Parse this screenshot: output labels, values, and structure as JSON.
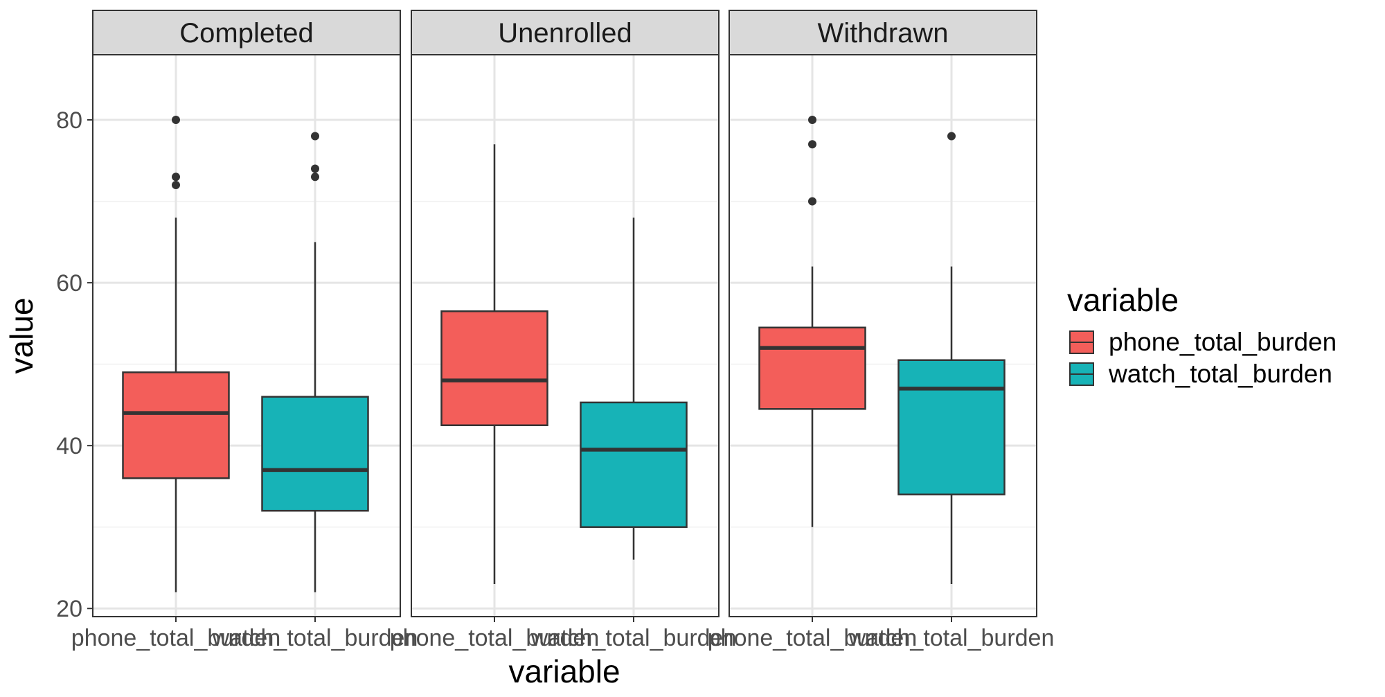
{
  "chart_data": {
    "type": "boxplot",
    "title": "",
    "xlabel": "variable",
    "ylabel": "value",
    "ylim": [
      19,
      88
    ],
    "yticks": [
      20,
      40,
      60,
      80
    ],
    "grid": true,
    "categories": [
      "phone_total_burden",
      "watch_total_burden"
    ],
    "legend": {
      "title": "variable",
      "position": "right",
      "entries": [
        {
          "label": "phone_total_burden",
          "color": "#F35E5A"
        },
        {
          "label": "watch_total_burden",
          "color": "#17B3B7"
        }
      ]
    },
    "facets": [
      {
        "label": "Completed",
        "boxes": [
          {
            "category": "phone_total_burden",
            "min": 22,
            "q1": 36,
            "median": 44,
            "q3": 49,
            "max": 68,
            "outliers": [
              72,
              73,
              80
            ]
          },
          {
            "category": "watch_total_burden",
            "min": 22,
            "q1": 32,
            "median": 37,
            "q3": 46,
            "max": 65,
            "outliers": [
              73,
              74,
              78
            ]
          }
        ]
      },
      {
        "label": "Unenrolled",
        "boxes": [
          {
            "category": "phone_total_burden",
            "min": 23,
            "q1": 42.5,
            "median": 48,
            "q3": 56.5,
            "max": 77,
            "outliers": []
          },
          {
            "category": "watch_total_burden",
            "min": 26,
            "q1": 30,
            "median": 39.5,
            "q3": 45.3,
            "max": 68,
            "outliers": []
          }
        ]
      },
      {
        "label": "Withdrawn",
        "boxes": [
          {
            "category": "phone_total_burden",
            "min": 30,
            "q1": 44.5,
            "median": 52,
            "q3": 54.5,
            "max": 62,
            "outliers": [
              70,
              77,
              80
            ]
          },
          {
            "category": "watch_total_burden",
            "min": 23,
            "q1": 34,
            "median": 47,
            "q3": 50.5,
            "max": 62,
            "outliers": [
              78
            ]
          }
        ]
      }
    ]
  }
}
